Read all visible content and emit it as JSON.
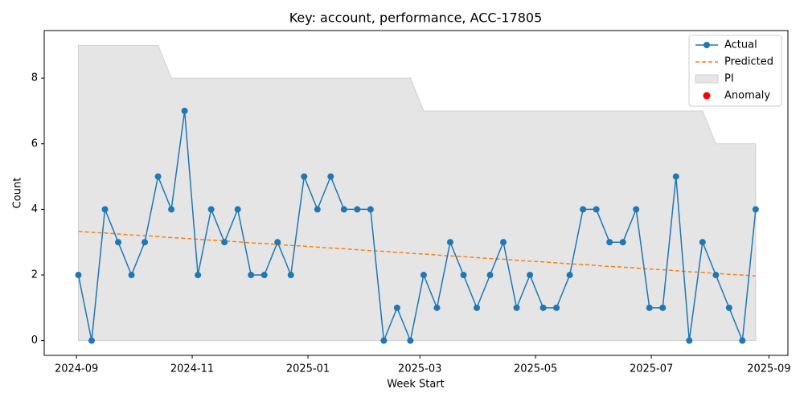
{
  "chart_data": {
    "type": "line",
    "title": "Key: account, performance, ACC-17805",
    "xlabel": "Week Start",
    "ylabel": "Count",
    "x": [
      "2024-09-02",
      "2024-09-09",
      "2024-09-16",
      "2024-09-23",
      "2024-09-30",
      "2024-10-07",
      "2024-10-14",
      "2024-10-21",
      "2024-10-28",
      "2024-11-04",
      "2024-11-11",
      "2024-11-18",
      "2024-11-25",
      "2024-12-02",
      "2024-12-09",
      "2024-12-16",
      "2024-12-23",
      "2024-12-30",
      "2025-01-06",
      "2025-01-13",
      "2025-01-20",
      "2025-01-27",
      "2025-02-03",
      "2025-02-10",
      "2025-02-17",
      "2025-02-24",
      "2025-03-03",
      "2025-03-10",
      "2025-03-17",
      "2025-03-24",
      "2025-03-31",
      "2025-04-07",
      "2025-04-14",
      "2025-04-21",
      "2025-04-28",
      "2025-05-05",
      "2025-05-12",
      "2025-05-19",
      "2025-05-26",
      "2025-06-02",
      "2025-06-09",
      "2025-06-16",
      "2025-06-23",
      "2025-06-30",
      "2025-07-07",
      "2025-07-14",
      "2025-07-21",
      "2025-07-28",
      "2025-08-04",
      "2025-08-11",
      "2025-08-18",
      "2025-08-25"
    ],
    "series": [
      {
        "name": "Actual",
        "color": "#1f77b4",
        "values": [
          2,
          0,
          4,
          3,
          2,
          3,
          5,
          4,
          7,
          2,
          4,
          3,
          4,
          2,
          2,
          3,
          2,
          5,
          4,
          5,
          4,
          4,
          4,
          0,
          1,
          0,
          2,
          1,
          3,
          2,
          1,
          2,
          3,
          1,
          2,
          1,
          1,
          2,
          4,
          4,
          3,
          3,
          4,
          1,
          1,
          5,
          0,
          3,
          2,
          1,
          0,
          4
        ]
      },
      {
        "name": "Predicted",
        "color": "#ff7f0e",
        "values": [
          3.33,
          3.3,
          3.28,
          3.25,
          3.22,
          3.2,
          3.17,
          3.14,
          3.12,
          3.09,
          3.06,
          3.04,
          3.01,
          2.98,
          2.96,
          2.93,
          2.9,
          2.88,
          2.85,
          2.82,
          2.8,
          2.77,
          2.74,
          2.72,
          2.69,
          2.66,
          2.64,
          2.61,
          2.58,
          2.56,
          2.53,
          2.5,
          2.48,
          2.45,
          2.42,
          2.4,
          2.37,
          2.34,
          2.32,
          2.29,
          2.26,
          2.24,
          2.21,
          2.18,
          2.16,
          2.13,
          2.1,
          2.08,
          2.05,
          2.02,
          2.0,
          1.97
        ]
      }
    ],
    "interval": {
      "name": "PI",
      "color": "#e5e5e5",
      "lower": [
        0,
        0,
        0,
        0,
        0,
        0,
        0,
        0,
        0,
        0,
        0,
        0,
        0,
        0,
        0,
        0,
        0,
        0,
        0,
        0,
        0,
        0,
        0,
        0,
        0,
        0,
        0,
        0,
        0,
        0,
        0,
        0,
        0,
        0,
        0,
        0,
        0,
        0,
        0,
        0,
        0,
        0,
        0,
        0,
        0,
        0,
        0,
        0,
        0,
        0,
        0,
        0
      ],
      "upper": [
        9,
        9,
        9,
        9,
        9,
        9,
        9,
        8,
        8,
        8,
        8,
        8,
        8,
        8,
        8,
        8,
        8,
        8,
        8,
        8,
        8,
        8,
        8,
        8,
        8,
        8,
        7,
        7,
        7,
        7,
        7,
        7,
        7,
        7,
        7,
        7,
        7,
        7,
        7,
        7,
        7,
        7,
        7,
        7,
        7,
        7,
        7,
        7,
        6,
        6,
        6,
        6
      ]
    },
    "anomaly": {
      "name": "Anomaly",
      "color": "red"
    },
    "xlim": [
      "2024-08-15",
      "2025-09-11"
    ],
    "xticks": [
      {
        "value": "2024-09-01",
        "label": "2024-09"
      },
      {
        "value": "2024-11-01",
        "label": "2024-11"
      },
      {
        "value": "2025-01-01",
        "label": "2025-01"
      },
      {
        "value": "2025-03-01",
        "label": "2025-03"
      },
      {
        "value": "2025-05-01",
        "label": "2025-05"
      },
      {
        "value": "2025-07-01",
        "label": "2025-07"
      },
      {
        "value": "2025-09-01",
        "label": "2025-09"
      }
    ],
    "ylim": [
      -0.45,
      9.45
    ],
    "yticks": [
      0,
      2,
      4,
      6,
      8
    ],
    "legend": "upper right"
  }
}
